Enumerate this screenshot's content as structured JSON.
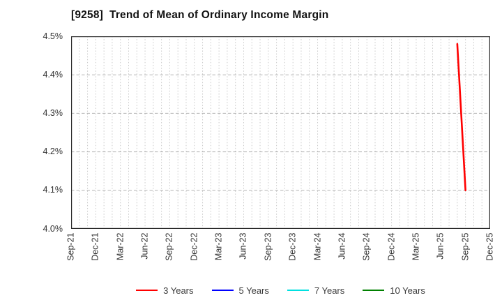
{
  "figure": {
    "background": "#ffffff"
  },
  "chart_data": {
    "type": "line",
    "title": "[9258]  Trend of Mean of Ordinary Income Margin",
    "title_color": "#111111",
    "ylim": [
      4.0,
      4.5
    ],
    "ylabel": "",
    "xlabel": "",
    "y_ticks": [
      {
        "label": "4.5%",
        "value": 4.5
      },
      {
        "label": "4.4%",
        "value": 4.4
      },
      {
        "label": "4.3%",
        "value": 4.3
      },
      {
        "label": "4.2%",
        "value": 4.2
      },
      {
        "label": "4.1%",
        "value": 4.1
      },
      {
        "label": "4.0%",
        "value": 4.0
      }
    ],
    "x_axis": {
      "months_total": 51,
      "tick_step_months": 3,
      "minor_gridline_step_months": 1,
      "start_label": "Sep-21",
      "end_label": "Dec-25"
    },
    "x_tick_labels": [
      "Sep-21",
      "Dec-21",
      "Mar-22",
      "Jun-22",
      "Sep-22",
      "Dec-22",
      "Mar-23",
      "Jun-23",
      "Sep-23",
      "Dec-23",
      "Mar-24",
      "Jun-24",
      "Sep-24",
      "Dec-24",
      "Mar-25",
      "Jun-25",
      "Sep-25",
      "Dec-25"
    ],
    "grid": {
      "vertical": "dotted, monthly",
      "horizontal": "dashed, every 0.1%",
      "vertical_color": "#c9c9c9",
      "horizontal_color": "#b3b3b3",
      "border_color": "#2b2b2b"
    },
    "legend_position": "bottom-center",
    "series": [
      {
        "name": "3 Years",
        "color": "#ff0000",
        "points": [
          {
            "x_month_index": 47,
            "x_date": "Aug-25",
            "y": 4.48
          },
          {
            "x_month_index": 48,
            "x_date": "Sep-25",
            "y": 4.1
          }
        ]
      },
      {
        "name": "5 Years",
        "color": "#0000ff",
        "points": []
      },
      {
        "name": "7 Years",
        "color": "#00e0e0",
        "points": []
      },
      {
        "name": "10 Years",
        "color": "#008000",
        "points": []
      }
    ]
  }
}
